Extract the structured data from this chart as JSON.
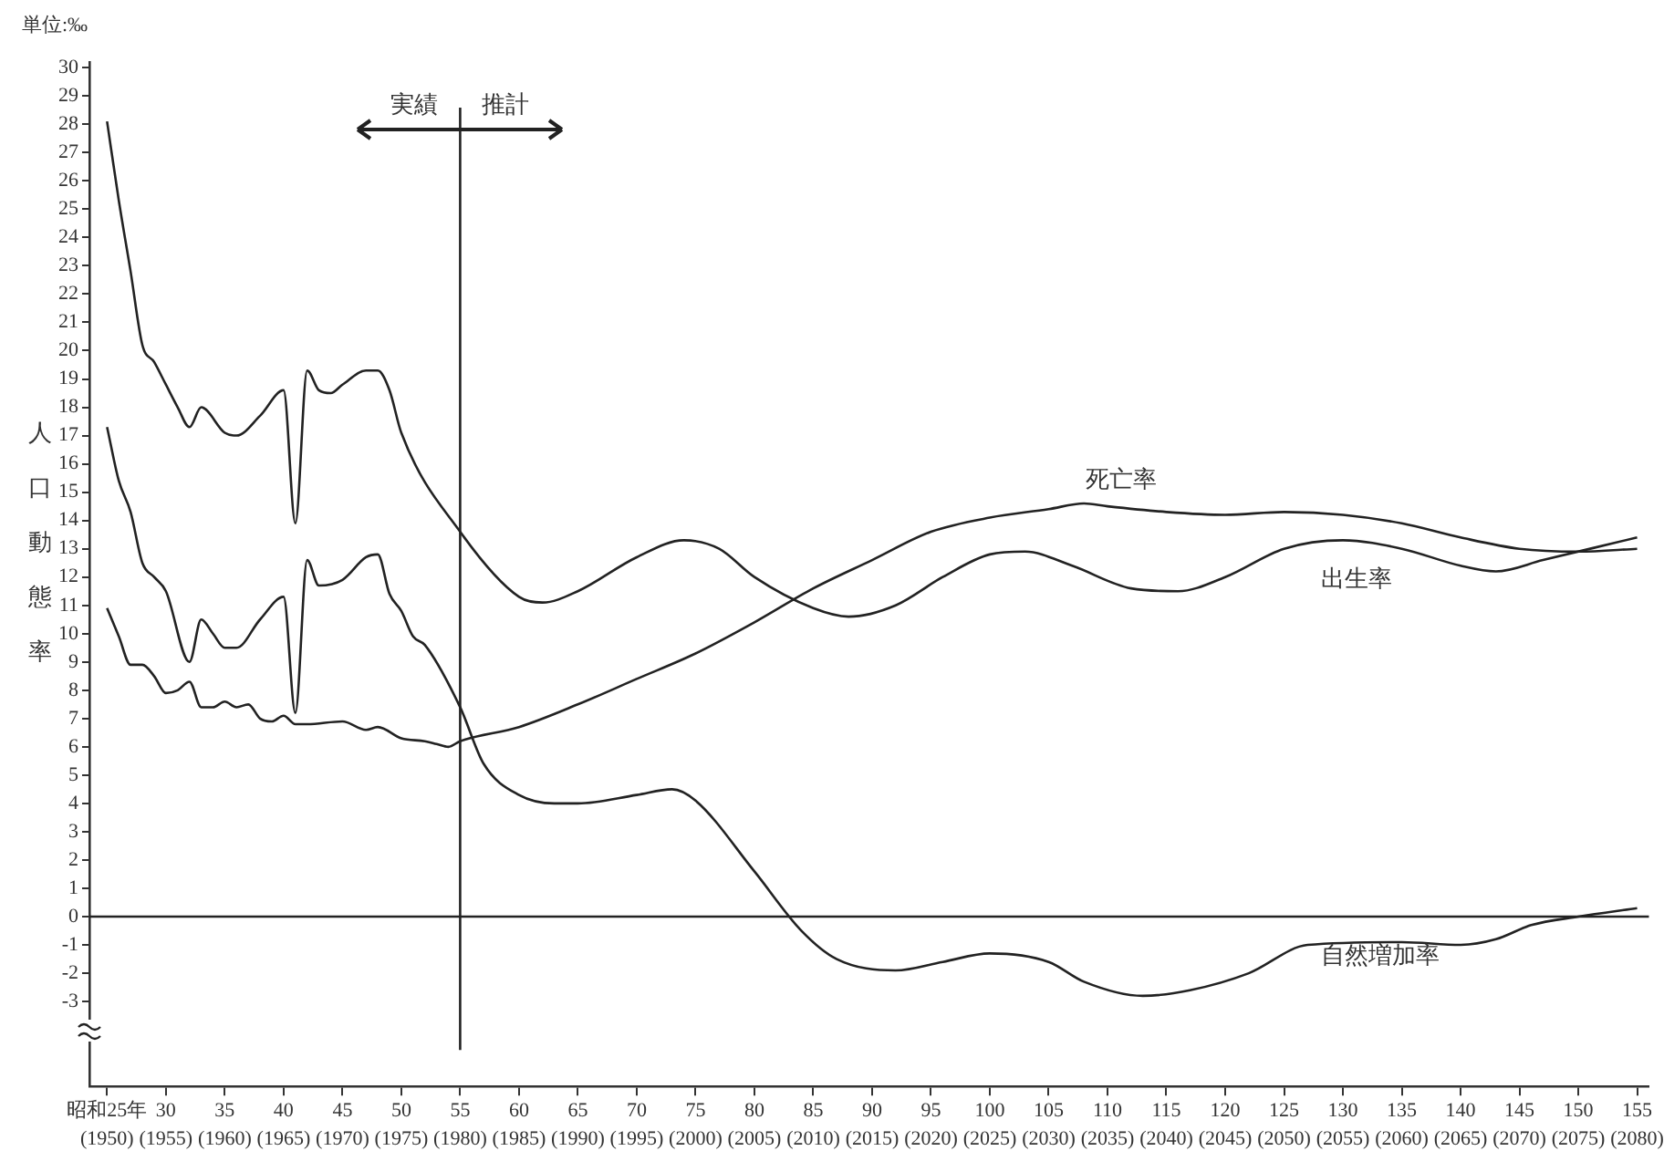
{
  "chart_data": {
    "type": "line",
    "ylabel": "人口動態率",
    "annotations": [
      "単位:‰",
      "実績",
      "推計"
    ],
    "xlim": [
      23.5,
      156
    ],
    "ylim": [
      -6,
      30.2
    ],
    "xticks": [
      {
        "value": 25,
        "label": "昭和25年"
      },
      30,
      35,
      40,
      45,
      50,
      55,
      60,
      65,
      70,
      75,
      80,
      85,
      90,
      95,
      100,
      105,
      110,
      115,
      120,
      125,
      130,
      135,
      140,
      145,
      150,
      155
    ],
    "x2lim": [
      1948.5,
      2081
    ],
    "x2ticks": [
      {
        "value": 1950,
        "label": "(1950)"
      },
      {
        "value": 1955,
        "label": "(1955)"
      },
      {
        "value": 1960,
        "label": "(1960)"
      },
      {
        "value": 1965,
        "label": "(1965)"
      },
      {
        "value": 1970,
        "label": "(1970)"
      },
      {
        "value": 1975,
        "label": "(1975)"
      },
      {
        "value": 1980,
        "label": "(1980)"
      },
      {
        "value": 1985,
        "label": "(1985)"
      },
      {
        "value": 1990,
        "label": "(1990)"
      },
      {
        "value": 1995,
        "label": "(1995)"
      },
      {
        "value": 2000,
        "label": "(2000)"
      },
      {
        "value": 2005,
        "label": "(2005)"
      },
      {
        "value": 2010,
        "label": "(2010)"
      },
      {
        "value": 2015,
        "label": "(2015)"
      },
      {
        "value": 2020,
        "label": "(2020)"
      },
      {
        "value": 2025,
        "label": "(2025)"
      },
      {
        "value": 2030,
        "label": "(2030)"
      },
      {
        "value": 2035,
        "label": "(2035)"
      },
      {
        "value": 2040,
        "label": "(2040)"
      },
      {
        "value": 2045,
        "label": "(2045)"
      },
      {
        "value": 2050,
        "label": "(2050)"
      },
      {
        "value": 2055,
        "label": "(2055)"
      },
      {
        "value": 2060,
        "label": "(2060)"
      },
      {
        "value": 2065,
        "label": "(2065)"
      },
      {
        "value": 2070,
        "label": "(2070)"
      },
      {
        "value": 2075,
        "label": "(2075)"
      },
      {
        "value": 2080,
        "label": "(2080)"
      }
    ],
    "yticks": [
      -3,
      -2,
      -1,
      0,
      1,
      2,
      3,
      4,
      5,
      6,
      7,
      8,
      9,
      10,
      11,
      12,
      13,
      14,
      15,
      16,
      17,
      18,
      19,
      20,
      21,
      22,
      23,
      24,
      25,
      26,
      27,
      28,
      29,
      30
    ],
    "grid": false,
    "legend": false,
    "marker": "none",
    "line_style": "solid",
    "ref_lines": [
      {
        "axis": "x",
        "value": 55
      },
      {
        "axis": "y",
        "value": 0
      }
    ],
    "series": [
      {
        "name": "出生率",
        "color": "#222222",
        "x": [
          25,
          26,
          27,
          28,
          29,
          30,
          31,
          32,
          33,
          35,
          36,
          38,
          40,
          41,
          42,
          43,
          44,
          45,
          47,
          48,
          49,
          50,
          55,
          60,
          62,
          65,
          70,
          74,
          77,
          80,
          85,
          88,
          92,
          96,
          100,
          103,
          107,
          112,
          116,
          120,
          125,
          130,
          135,
          140,
          143,
          147,
          155
        ],
        "values": [
          28.1,
          25.3,
          22.8,
          20.2,
          19.6,
          18.8,
          18.0,
          17.3,
          18.0,
          17.1,
          17.0,
          17.7,
          18.6,
          13.9,
          19.3,
          18.6,
          18.5,
          18.8,
          19.3,
          19.3,
          18.6,
          17.1,
          13.6,
          11.3,
          11.1,
          11.5,
          12.7,
          13.3,
          13.0,
          12.0,
          10.9,
          10.6,
          11.0,
          12.0,
          12.8,
          12.9,
          12.4,
          11.6,
          11.5,
          12.0,
          13.0,
          13.3,
          13.0,
          12.4,
          12.2,
          12.6,
          13.4
        ]
      },
      {
        "name": "死亡率",
        "color": "#222222",
        "x": [
          25,
          26,
          27,
          28,
          29,
          30,
          31,
          32,
          33,
          34,
          35,
          36,
          37,
          38,
          39,
          40,
          41,
          42,
          45,
          47,
          48,
          50,
          52,
          53,
          54,
          55,
          60,
          65,
          70,
          75,
          80,
          85,
          90,
          95,
          100,
          105,
          108,
          110,
          115,
          120,
          125,
          130,
          135,
          140,
          145,
          150,
          155
        ],
        "values": [
          10.9,
          9.9,
          8.9,
          8.9,
          8.5,
          7.9,
          8.0,
          8.3,
          7.4,
          7.4,
          7.6,
          7.4,
          7.5,
          7.0,
          6.9,
          7.1,
          6.8,
          6.8,
          6.9,
          6.6,
          6.7,
          6.3,
          6.2,
          6.1,
          6.0,
          6.2,
          6.7,
          7.5,
          8.4,
          9.3,
          10.4,
          11.6,
          12.6,
          13.6,
          14.1,
          14.4,
          14.6,
          14.5,
          14.3,
          14.2,
          14.3,
          14.2,
          13.9,
          13.4,
          13.0,
          12.9,
          13.0
        ]
      },
      {
        "name": "自然増加率",
        "color": "#222222",
        "x": [
          25,
          26,
          27,
          28,
          29,
          30,
          32,
          33,
          34,
          35,
          36,
          38,
          40,
          41,
          42,
          43,
          45,
          47,
          48,
          49,
          50,
          51,
          52,
          55,
          57,
          60,
          63,
          65,
          70,
          73,
          75,
          80,
          84,
          87,
          92,
          96,
          100,
          105,
          108,
          113,
          117,
          122,
          127,
          135,
          140,
          143,
          146,
          150,
          155
        ],
        "values": [
          17.3,
          15.4,
          14.3,
          12.5,
          12.0,
          11.5,
          9.0,
          10.5,
          10.0,
          9.5,
          9.5,
          10.5,
          11.3,
          7.2,
          12.6,
          11.7,
          11.9,
          12.7,
          12.8,
          11.4,
          10.8,
          9.9,
          9.6,
          7.4,
          5.4,
          4.3,
          4.0,
          4.0,
          4.3,
          4.5,
          4.1,
          1.6,
          -0.5,
          -1.5,
          -1.9,
          -1.6,
          -1.3,
          -1.6,
          -2.3,
          -2.8,
          -2.6,
          -2.0,
          -1.0,
          -0.9,
          -1.0,
          -0.8,
          -0.3,
          0.0,
          0.3
        ]
      }
    ]
  }
}
